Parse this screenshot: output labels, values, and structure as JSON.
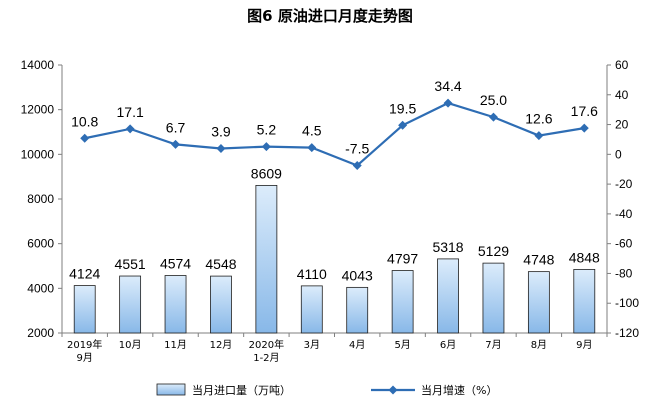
{
  "chart_data": {
    "type": "bar",
    "title": "图6  原油进口月度走势图",
    "categories": [
      [
        "2019年",
        "9月"
      ],
      [
        "10月"
      ],
      [
        "11月"
      ],
      [
        "12月"
      ],
      [
        "2020年",
        "1-2月"
      ],
      [
        "3月"
      ],
      [
        "4月"
      ],
      [
        "5月"
      ],
      [
        "6月"
      ],
      [
        "7月"
      ],
      [
        "8月"
      ],
      [
        "9月"
      ]
    ],
    "series": [
      {
        "name": "当月进口量（万吨）",
        "type": "bar",
        "axis": "left",
        "values": [
          4124,
          4551,
          4574,
          4548,
          8609,
          4110,
          4043,
          4797,
          5318,
          5129,
          4748,
          4848
        ],
        "labels": [
          "4124",
          "4551",
          "4574",
          "4548",
          "8609",
          "4110",
          "4043",
          "4797",
          "5318",
          "5129",
          "4748",
          "4848"
        ]
      },
      {
        "name": "当月增速（%）",
        "type": "line",
        "axis": "right",
        "values": [
          10.8,
          17.1,
          6.7,
          3.9,
          5.2,
          4.5,
          -7.5,
          19.5,
          34.4,
          25.0,
          12.6,
          17.6
        ],
        "labels": [
          "10.8",
          "17.1",
          "6.7",
          "3.9",
          "5.2",
          "4.5",
          "-7.5",
          "19.5",
          "34.4",
          "25.0",
          "12.6",
          "17.6"
        ]
      }
    ],
    "y_left": {
      "lim": [
        2000,
        14000
      ],
      "ticks": [
        2000,
        4000,
        6000,
        8000,
        10000,
        12000,
        14000
      ],
      "tick_labels": [
        "2000",
        "4000",
        "6000",
        "8000",
        "10000",
        "12000",
        "14000"
      ]
    },
    "y_right": {
      "lim": [
        -120,
        60
      ],
      "ticks": [
        -120,
        -100,
        -80,
        -60,
        -40,
        -20,
        0,
        20,
        40,
        60
      ],
      "tick_labels": [
        "-120",
        "-100",
        "-80",
        "-60",
        "-40",
        "-20",
        "0",
        "20",
        "40",
        "60"
      ]
    },
    "grid": false,
    "legend_position": "bottom",
    "colors": {
      "bar_fill_top": "#dcecfb",
      "bar_fill_bottom": "#88b8e8",
      "bar_stroke": "#1f1f1f",
      "line": "#2e6db4",
      "axis": "#7f7f7f"
    }
  }
}
